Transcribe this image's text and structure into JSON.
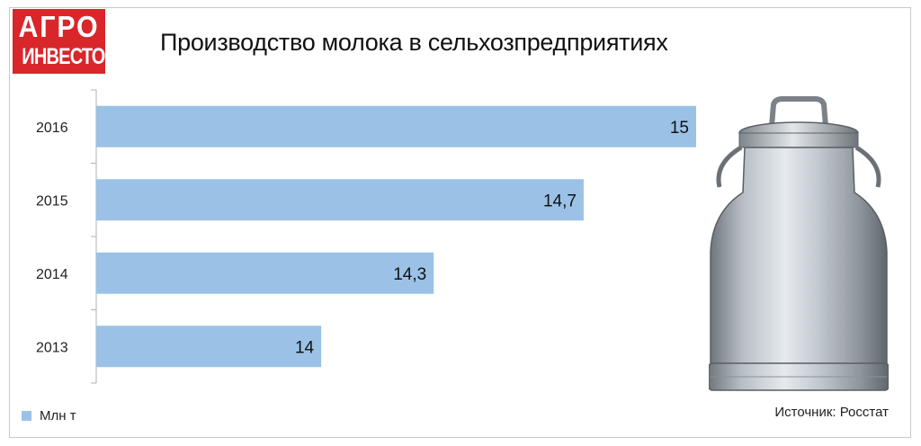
{
  "logo": {
    "line1": "АГРО",
    "line2": "ИНВЕСТОР"
  },
  "title": "Производство молока в сельхозпредприятиях",
  "legend": {
    "label": "Млн т",
    "color": "#9bc2e6"
  },
  "source": "Источник: Росстат",
  "colors": {
    "bar": "#9bc2e6",
    "logo": "#d8262b",
    "axis": "#b0b0b0"
  },
  "chart_data": {
    "type": "bar",
    "orientation": "horizontal",
    "title": "Производство молока в сельхозпредприятиях",
    "categories": [
      "2016",
      "2015",
      "2014",
      "2013"
    ],
    "series": [
      {
        "name": "Млн т",
        "values": [
          15,
          14.7,
          14.3,
          14
        ],
        "labels": [
          "15",
          "14,7",
          "14,3",
          "14"
        ]
      }
    ],
    "xlim": [
      13.4,
      15
    ],
    "grid": false,
    "legend_position": "bottom-left"
  }
}
